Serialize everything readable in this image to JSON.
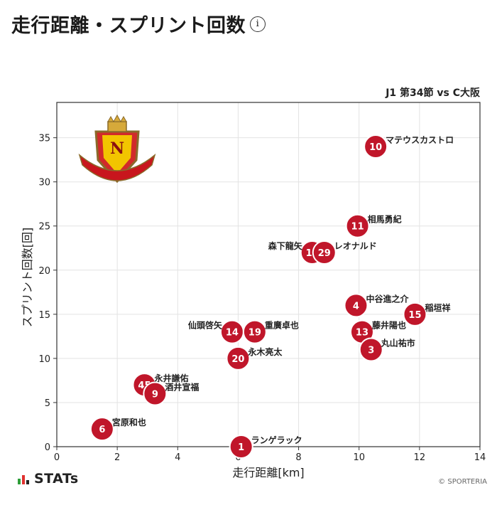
{
  "header": {
    "title": "走行距離・スプリント回数",
    "info_icon": "info-icon"
  },
  "match_label": "J1 第34節 vs C大阪",
  "branding": {
    "stats_label": "STATs",
    "credit": "© SPORTERIA"
  },
  "colors": {
    "marker": "#c0162a",
    "marker_stroke": "#ffffff",
    "grid": "#e3e3e3",
    "text": "#222222"
  },
  "chart_data": {
    "type": "scatter",
    "title": "",
    "xlabel": "走行距離[km]",
    "ylabel": "スプリント回数[回]",
    "xlim": [
      0,
      14
    ],
    "ylim": [
      0,
      39
    ],
    "xticks": [
      0,
      2,
      4,
      6,
      8,
      10,
      12,
      14
    ],
    "yticks": [
      0,
      5,
      10,
      15,
      20,
      25,
      30,
      35
    ],
    "grid": true,
    "points": [
      {
        "number": "10",
        "name": "マテウスカストロ",
        "x": 10.55,
        "y": 34,
        "label_side": "right"
      },
      {
        "number": "11",
        "name": "相馬勇紀",
        "x": 9.95,
        "y": 25,
        "label_side": "right"
      },
      {
        "number": "17",
        "name": "森下龍矢",
        "x": 8.45,
        "y": 22,
        "label_side": "left"
      },
      {
        "number": "29",
        "name": "レオナルド",
        "x": 8.85,
        "y": 22,
        "label_side": "right"
      },
      {
        "number": "4",
        "name": "中谷進之介",
        "x": 9.9,
        "y": 16,
        "label_side": "right"
      },
      {
        "number": "15",
        "name": "稲垣祥",
        "x": 11.85,
        "y": 15,
        "label_side": "right"
      },
      {
        "number": "13",
        "name": "藤井陽也",
        "x": 10.1,
        "y": 13,
        "label_side": "right"
      },
      {
        "number": "3",
        "name": "丸山祐市",
        "x": 10.4,
        "y": 11,
        "label_side": "right"
      },
      {
        "number": "14",
        "name": "仙頭啓矢",
        "x": 5.8,
        "y": 13,
        "label_side": "left"
      },
      {
        "number": "19",
        "name": "重廣卓也",
        "x": 6.55,
        "y": 13,
        "label_side": "right"
      },
      {
        "number": "20",
        "name": "永木亮太",
        "x": 6.0,
        "y": 10,
        "label_side": "right"
      },
      {
        "number": "45",
        "name": "永井謙佑",
        "x": 2.9,
        "y": 7,
        "label_side": "right"
      },
      {
        "number": "9",
        "name": "酒井宣福",
        "x": 3.25,
        "y": 6,
        "label_side": "right"
      },
      {
        "number": "6",
        "name": "宮原和也",
        "x": 1.5,
        "y": 2,
        "label_side": "right"
      },
      {
        "number": "1",
        "name": "ランゲラック",
        "x": 6.1,
        "y": 0,
        "label_side": "right"
      }
    ]
  }
}
